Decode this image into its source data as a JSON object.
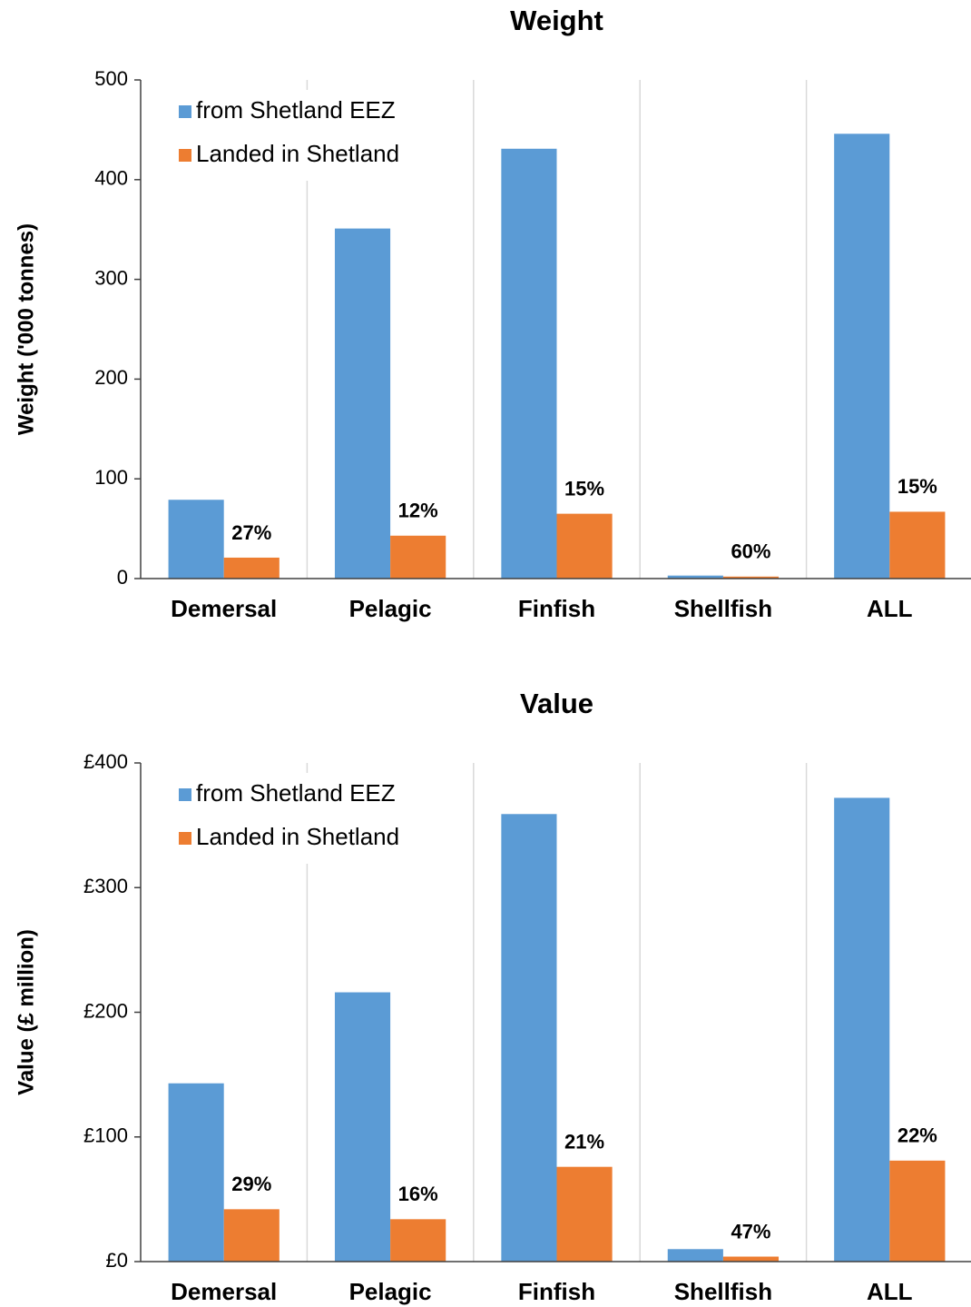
{
  "chart_data": [
    {
      "type": "bar",
      "title": "Weight",
      "y_label": "Weight ('000 tonnes)",
      "categories": [
        "Demersal",
        "Pelagic",
        "Finfish",
        "Shellfish",
        "ALL"
      ],
      "series": [
        {
          "name": "from Shetland EEZ",
          "color": "#5b9bd5",
          "values": [
            79,
            351,
            431,
            3,
            446
          ]
        },
        {
          "name": "Landed in Shetland",
          "color": "#ed7d31",
          "values": [
            21,
            43,
            65,
            2,
            67
          ]
        }
      ],
      "annotations": [
        "27%",
        "12%",
        "15%",
        "60%",
        "15%"
      ],
      "ylim": [
        0,
        500
      ],
      "yticks": [
        0,
        100,
        200,
        300,
        400,
        500
      ],
      "grid": "x",
      "legend": "upper left"
    },
    {
      "type": "bar",
      "title": "Value",
      "y_label": "Value (£ million)",
      "categories": [
        "Demersal",
        "Pelagic",
        "Finfish",
        "Shellfish",
        "ALL"
      ],
      "series": [
        {
          "name": "from Shetland EEZ",
          "color": "#5b9bd5",
          "values": [
            143,
            216,
            359,
            10,
            372
          ]
        },
        {
          "name": "Landed in Shetland",
          "color": "#ed7d31",
          "values": [
            42,
            34,
            76,
            4,
            81
          ]
        }
      ],
      "annotations": [
        "29%",
        "16%",
        "21%",
        "47%",
        "22%"
      ],
      "ylim": [
        0,
        400
      ],
      "yticks": [
        {
          "value": 0,
          "label": "£0"
        },
        {
          "value": 100,
          "label": "£100"
        },
        {
          "value": 200,
          "label": "£200"
        },
        {
          "value": 300,
          "label": "£300"
        },
        {
          "value": 400,
          "label": "£400"
        }
      ],
      "grid": "x",
      "legend": "upper left"
    }
  ]
}
